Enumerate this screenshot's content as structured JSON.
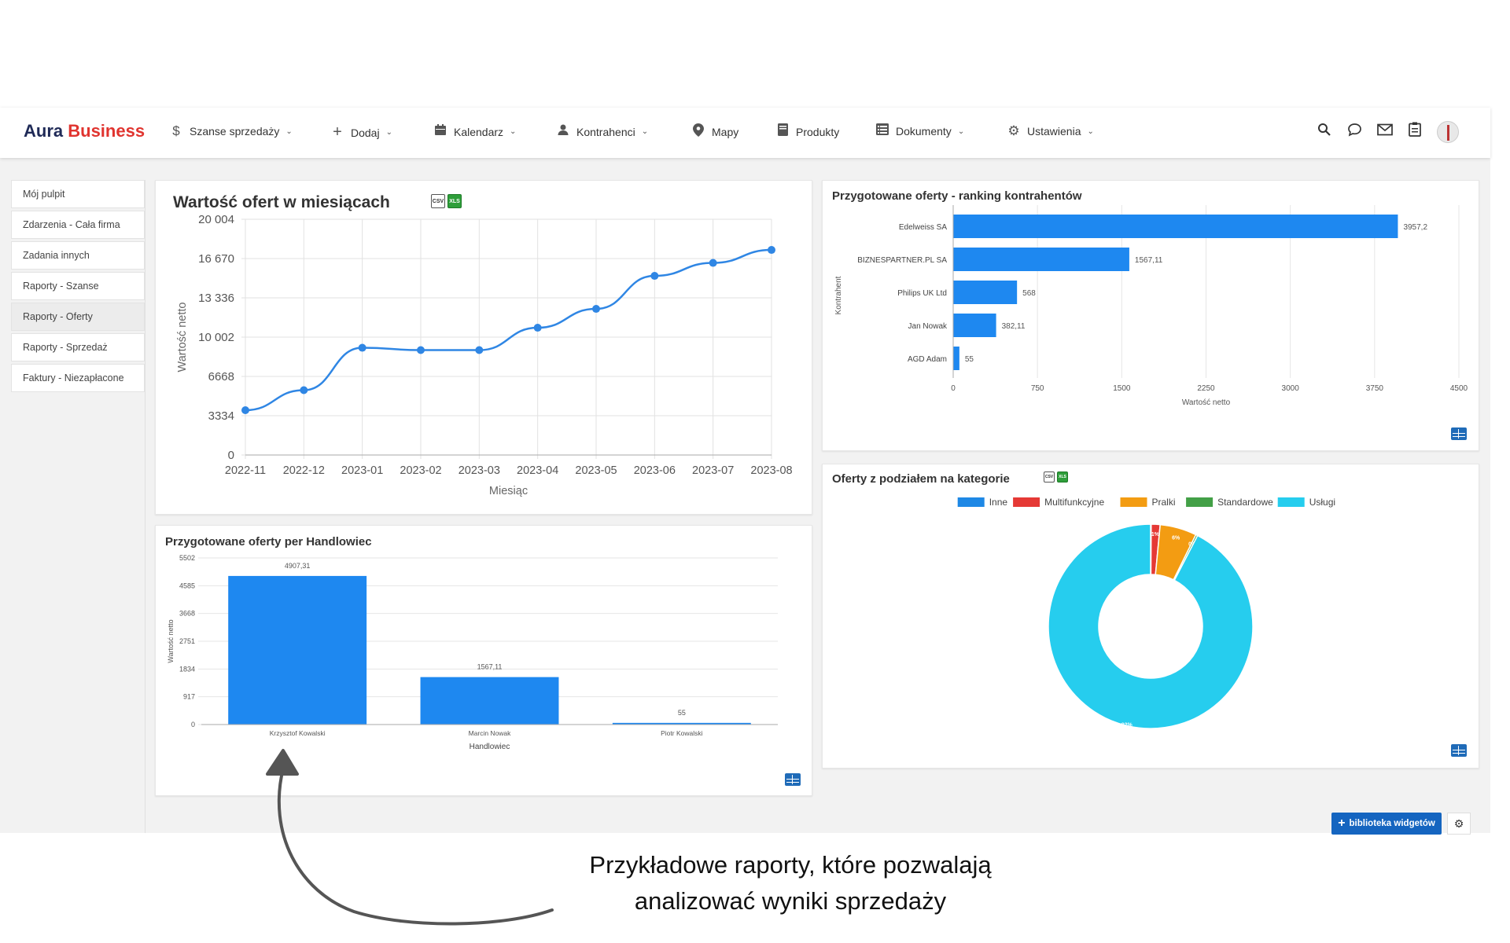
{
  "brand": {
    "part1": "Aura",
    "part2": "Business"
  },
  "nav": [
    {
      "label": "Szanse sprzedaży",
      "icon": "dollar-icon",
      "chevron": true
    },
    {
      "label": "Dodaj",
      "icon": "plus-icon",
      "chevron": true
    },
    {
      "label": "Kalendarz",
      "icon": "calendar-icon",
      "chevron": true
    },
    {
      "label": "Kontrahenci",
      "icon": "user-icon",
      "chevron": true
    },
    {
      "label": "Mapy",
      "icon": "map-pin-icon",
      "chevron": false
    },
    {
      "label": "Produkty",
      "icon": "book-icon",
      "chevron": false
    },
    {
      "label": "Dokumenty",
      "icon": "list-icon",
      "chevron": true
    },
    {
      "label": "Ustawienia",
      "icon": "gear-icon",
      "chevron": true
    }
  ],
  "sidebar": {
    "items": [
      {
        "label": "Mój pulpit"
      },
      {
        "label": "Zdarzenia - Cała firma"
      },
      {
        "label": "Zadania innych"
      },
      {
        "label": "Raporty - Szanse"
      },
      {
        "label": "Raporty - Oferty",
        "active": true
      },
      {
        "label": "Raporty - Sprzedaż"
      },
      {
        "label": "Faktury - Niezapłacone"
      }
    ]
  },
  "widgets": {
    "monthly": {
      "title": "Wartość ofert w miesiącach"
    },
    "ranking": {
      "title": "Przygotowane oferty - ranking kontrahentów"
    },
    "salesman": {
      "title": "Przygotowane oferty per Handlowiec"
    },
    "categories": {
      "title": "Oferty z podziałem na kategorie"
    }
  },
  "export": {
    "csv": "CSV",
    "xls": "XLS"
  },
  "bottom": {
    "library_label": "biblioteka widgetów"
  },
  "caption": {
    "line1": "Przykładowe raporty, które pozwalają",
    "line2": "analizować wyniki sprzedaży"
  },
  "chart_data": [
    {
      "type": "line",
      "title": "Wartość ofert w miesiącach",
      "xlabel": "Miesiąc",
      "ylabel": "Wartość netto",
      "categories": [
        "2022-11",
        "2022-12",
        "2023-01",
        "2023-02",
        "2023-03",
        "2023-04",
        "2023-05",
        "2023-06",
        "2023-07",
        "2023-08"
      ],
      "values": [
        3800,
        5500,
        9100,
        8900,
        8900,
        10800,
        12400,
        15200,
        16300,
        17400
      ],
      "yticks": [
        "0",
        "3334",
        "6668",
        "10 002",
        "13 336",
        "16 670",
        "20 004"
      ],
      "ylim": [
        0,
        20004
      ],
      "color": "#2f86e4",
      "grid": true
    },
    {
      "type": "bar",
      "orientation": "horizontal",
      "title": "Przygotowane oferty - ranking kontrahentów",
      "xlabel": "Wartość netto",
      "ylabel": "Kontrahent",
      "categories": [
        "Edelweiss SA",
        "BIZNESPARTNER.PL SA",
        "Philips UK Ltd",
        "Jan Nowak",
        "AGD Adam"
      ],
      "values": [
        3957.2,
        1567.11,
        568,
        382.11,
        55
      ],
      "value_labels": [
        "3957,2",
        "1567,11",
        "568",
        "382,11",
        "55"
      ],
      "xticks": [
        "0",
        "750",
        "1500",
        "2250",
        "3000",
        "3750",
        "4500"
      ],
      "xlim": [
        0,
        4500
      ],
      "color": "#1e88f0"
    },
    {
      "type": "bar",
      "title": "Przygotowane oferty per Handlowiec",
      "xlabel": "Handlowiec",
      "ylabel": "Wartość netto",
      "categories": [
        "Krzysztof Kowalski",
        "Marcin Nowak",
        "Piotr  Kowalski"
      ],
      "values": [
        4907.31,
        1567.11,
        55
      ],
      "value_labels": [
        "4907,31",
        "1567,11",
        "55"
      ],
      "yticks": [
        "0",
        "917",
        "1834",
        "2751",
        "3668",
        "4585",
        "5502"
      ],
      "ylim": [
        0,
        5502
      ],
      "color": "#1e88f0"
    },
    {
      "type": "pie",
      "variant": "donut",
      "title": "Oferty z podziałem na kategorie",
      "legend_position": "top",
      "series": [
        {
          "name": "Inne",
          "value": 0.1,
          "label": "0%",
          "color": "#1e88e5"
        },
        {
          "name": "Multifunkcyjne",
          "value": 1.4,
          "label": "1%",
          "color": "#e53935"
        },
        {
          "name": "Pralki",
          "value": 5.8,
          "label": "6%",
          "color": "#f39c12"
        },
        {
          "name": "Standardowe",
          "value": 0.3,
          "label": "0%",
          "color": "#43a047"
        },
        {
          "name": "Usługi",
          "value": 92.4,
          "label": "92%",
          "color": "#26cdee"
        }
      ]
    }
  ]
}
